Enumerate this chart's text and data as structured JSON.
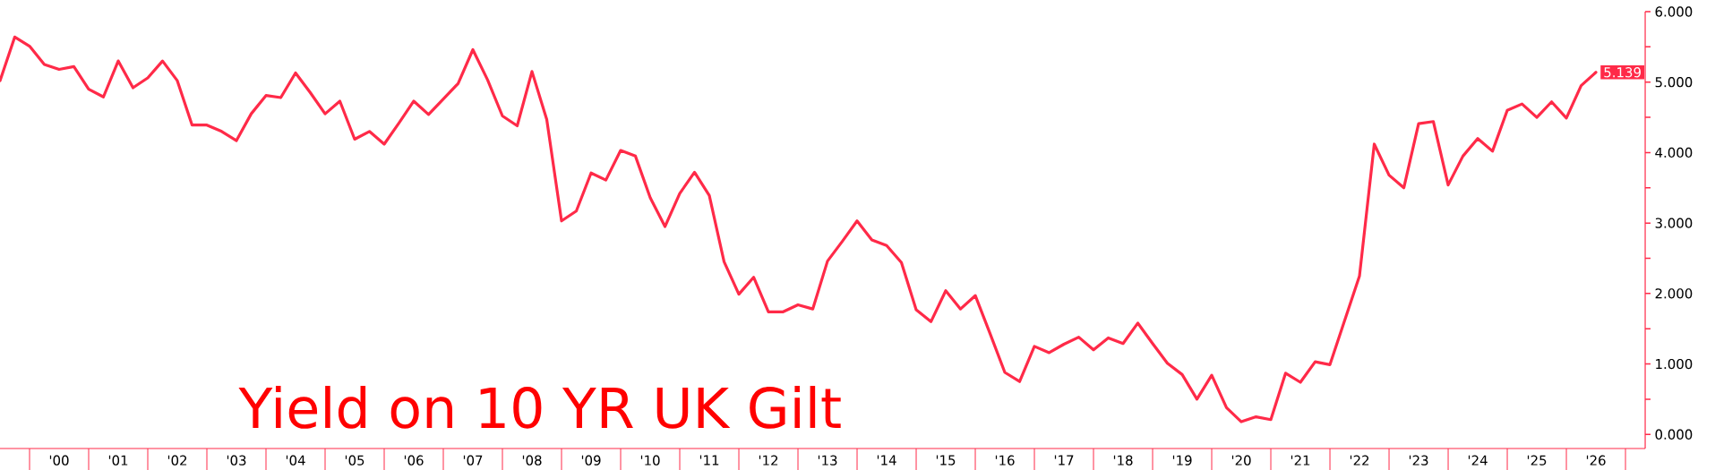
{
  "chart_data": {
    "type": "line",
    "title": "Yield on 10 YR UK Gilt",
    "x": [
      "1999-07",
      "1999-10",
      "2000-01",
      "2000-04",
      "2000-07",
      "2000-10",
      "2001-01",
      "2001-04",
      "2001-07",
      "2001-10",
      "2002-01",
      "2002-04",
      "2002-07",
      "2002-10",
      "2003-01",
      "2003-04",
      "2003-07",
      "2003-10",
      "2004-01",
      "2004-04",
      "2004-07",
      "2004-10",
      "2005-01",
      "2005-04",
      "2005-07",
      "2005-10",
      "2006-01",
      "2006-04",
      "2006-07",
      "2006-10",
      "2007-01",
      "2007-04",
      "2007-07",
      "2007-10",
      "2008-01",
      "2008-04",
      "2008-07",
      "2008-10",
      "2009-01",
      "2009-04",
      "2009-07",
      "2009-10",
      "2010-01",
      "2010-04",
      "2010-07",
      "2010-10",
      "2011-01",
      "2011-04",
      "2011-07",
      "2011-10",
      "2012-01",
      "2012-04",
      "2012-07",
      "2012-10",
      "2013-01",
      "2013-04",
      "2013-07",
      "2013-10",
      "2014-01",
      "2014-04",
      "2014-07",
      "2014-10",
      "2015-01",
      "2015-04",
      "2015-07",
      "2015-10",
      "2016-01",
      "2016-04",
      "2016-07",
      "2016-10",
      "2017-01",
      "2017-04",
      "2017-07",
      "2017-10",
      "2018-01",
      "2018-04",
      "2018-07",
      "2018-10",
      "2019-01",
      "2019-04",
      "2019-07",
      "2019-10",
      "2020-01",
      "2020-04",
      "2020-07",
      "2020-10",
      "2021-01",
      "2021-04",
      "2021-07",
      "2021-10",
      "2022-01",
      "2022-04",
      "2022-07",
      "2022-10",
      "2023-01",
      "2023-04",
      "2023-07",
      "2023-10",
      "2024-01",
      "2024-04",
      "2024-07",
      "2024-10",
      "2025-01",
      "2025-04",
      "2025-07",
      "2025-10",
      "2026-01",
      "2026-04",
      "2026-07"
    ],
    "series": [
      {
        "color": "#ff2a48",
        "values": [
          5.02,
          5.64,
          5.51,
          5.25,
          5.18,
          5.22,
          4.9,
          4.79,
          5.3,
          4.92,
          5.06,
          5.3,
          5.02,
          4.39,
          4.39,
          4.3,
          4.17,
          4.55,
          4.81,
          4.78,
          5.13,
          4.85,
          4.55,
          4.73,
          4.19,
          4.3,
          4.12,
          4.42,
          4.73,
          4.54,
          4.76,
          4.98,
          5.46,
          5.03,
          4.52,
          4.38,
          5.15,
          4.47,
          3.03,
          3.17,
          3.71,
          3.61,
          4.03,
          3.95,
          3.36,
          2.95,
          3.42,
          3.72,
          3.39,
          2.45,
          1.99,
          2.23,
          1.74,
          1.74,
          1.84,
          1.78,
          2.46,
          2.74,
          3.03,
          2.76,
          2.68,
          2.44,
          1.77,
          1.6,
          2.04,
          1.78,
          1.97,
          1.43,
          0.88,
          0.75,
          1.25,
          1.16,
          1.28,
          1.38,
          1.2,
          1.37,
          1.29,
          1.58,
          1.29,
          1.01,
          0.85,
          0.5,
          0.84,
          0.38,
          0.18,
          0.25,
          0.21,
          0.87,
          0.74,
          1.03,
          0.99,
          1.62,
          2.25,
          4.12,
          3.68,
          3.5,
          4.41,
          4.44,
          3.54,
          3.95,
          4.2,
          4.02,
          4.6,
          4.69,
          4.5,
          4.72,
          4.49,
          4.95,
          5.139
        ]
      }
    ],
    "xlim": [
      "1999-07",
      "2027-05"
    ],
    "ylim": [
      -0.2,
      6.0
    ],
    "xticks": [
      {
        "value": "2000-07",
        "label": "'00"
      },
      {
        "value": "2001-07",
        "label": "'01"
      },
      {
        "value": "2002-07",
        "label": "'02"
      },
      {
        "value": "2003-07",
        "label": "'03"
      },
      {
        "value": "2004-07",
        "label": "'04"
      },
      {
        "value": "2005-07",
        "label": "'05"
      },
      {
        "value": "2006-07",
        "label": "'06"
      },
      {
        "value": "2007-07",
        "label": "'07"
      },
      {
        "value": "2008-07",
        "label": "'08"
      },
      {
        "value": "2009-07",
        "label": "'09"
      },
      {
        "value": "2010-07",
        "label": "'10"
      },
      {
        "value": "2011-07",
        "label": "'11"
      },
      {
        "value": "2012-07",
        "label": "'12"
      },
      {
        "value": "2013-07",
        "label": "'13"
      },
      {
        "value": "2014-07",
        "label": "'14"
      },
      {
        "value": "2015-07",
        "label": "'15"
      },
      {
        "value": "2016-07",
        "label": "'16"
      },
      {
        "value": "2017-07",
        "label": "'17"
      },
      {
        "value": "2018-07",
        "label": "'18"
      },
      {
        "value": "2019-07",
        "label": "'19"
      },
      {
        "value": "2020-07",
        "label": "'20"
      },
      {
        "value": "2021-07",
        "label": "'21"
      },
      {
        "value": "2022-07",
        "label": "'22"
      },
      {
        "value": "2023-07",
        "label": "'23"
      },
      {
        "value": "2024-07",
        "label": "'24"
      },
      {
        "value": "2025-07",
        "label": "'25"
      },
      {
        "value": "2026-07",
        "label": "'26"
      }
    ],
    "yticks": [
      {
        "value": 0,
        "label": "0.000"
      },
      {
        "value": 0.5,
        "label": null
      },
      {
        "value": 1,
        "label": "1.000"
      },
      {
        "value": 1.5,
        "label": null
      },
      {
        "value": 2,
        "label": "2.000"
      },
      {
        "value": 2.5,
        "label": null
      },
      {
        "value": 3,
        "label": "3.000"
      },
      {
        "value": 3.5,
        "label": null
      },
      {
        "value": 4,
        "label": "4.000"
      },
      {
        "value": 4.5,
        "label": null
      },
      {
        "value": 5,
        "label": "5.000"
      },
      {
        "value": 5.5,
        "label": null
      },
      {
        "value": 6,
        "label": "6.000"
      }
    ],
    "annotations": [
      {
        "text": "5.139",
        "x": "2026-07",
        "y": 5.139
      }
    ]
  }
}
